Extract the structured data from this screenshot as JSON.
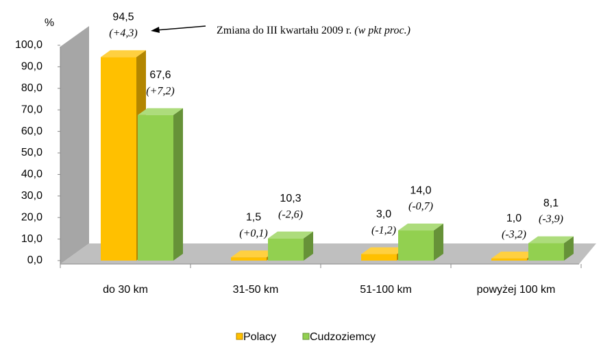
{
  "chart_data": {
    "type": "bar3d",
    "y_label": "%",
    "annotation": {
      "text": "Zmiana do III kwartału 2009 r.",
      "note": "(w pkt proc.)"
    },
    "categories": [
      "do 30 km",
      "31-50 km",
      "51-100 km",
      "powyżej 100 km"
    ],
    "series": [
      {
        "name": "Polacy",
        "color": "#FFC000",
        "values": [
          94.5,
          1.5,
          3.0,
          1.0
        ],
        "value_labels": [
          "94,5",
          "1,5",
          "3,0",
          "1,0"
        ],
        "change_labels": [
          "(+4,3)",
          "(+0,1)",
          "(-1,2)",
          "(-3,2)"
        ]
      },
      {
        "name": "Cudzoziemcy",
        "color": "#92D050",
        "values": [
          67.6,
          10.3,
          14.0,
          8.1
        ],
        "value_labels": [
          "67,6",
          "10,3",
          "14,0",
          "8,1"
        ],
        "change_labels": [
          "(+7,2)",
          "(-2,6)",
          "(-0,7)",
          "(-3,9)"
        ]
      }
    ],
    "ylim": [
      0,
      100
    ],
    "yticks": [
      {
        "value": 0,
        "label": "0,0"
      },
      {
        "value": 10,
        "label": "10,0"
      },
      {
        "value": 20,
        "label": "20,0"
      },
      {
        "value": 30,
        "label": "30,0"
      },
      {
        "value": 40,
        "label": "40,0"
      },
      {
        "value": 50,
        "label": "50,0"
      },
      {
        "value": 60,
        "label": "60,0"
      },
      {
        "value": 70,
        "label": "70,0"
      },
      {
        "value": 80,
        "label": "80,0"
      },
      {
        "value": 90,
        "label": "90,0"
      },
      {
        "value": 100,
        "label": "100,0"
      }
    ],
    "legend": "bottom"
  }
}
